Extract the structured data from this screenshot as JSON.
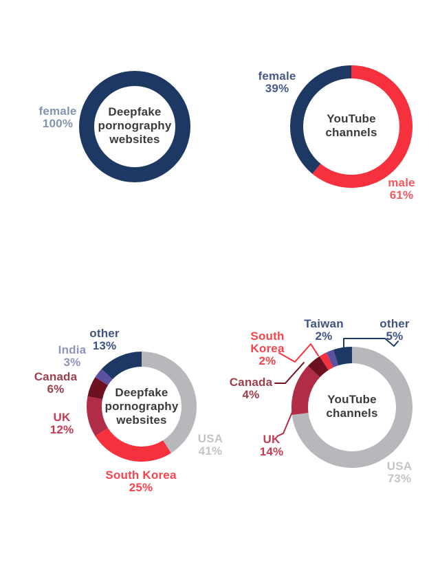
{
  "page": {
    "background_color": "#ffffff"
  },
  "chart_data": [
    {
      "type": "donut",
      "title": "Deepfake pornography websites",
      "legend_position": "outside-left",
      "slices": [
        {
          "label": "female",
          "pct": "100%",
          "value": 100,
          "color": "#1e3864",
          "label_color": "#8392af"
        }
      ]
    },
    {
      "type": "donut",
      "title": "YouTube channels",
      "legend_position": "outside",
      "slices": [
        {
          "label": "male",
          "pct": "61%",
          "value": 61,
          "color": "#f6303d",
          "label_color": "#f4575f"
        },
        {
          "label": "female",
          "pct": "39%",
          "value": 39,
          "color": "#1e3864",
          "label_color": "#47598a"
        }
      ]
    },
    {
      "type": "donut",
      "title": "Deepfake pornography websites",
      "legend_position": "outside",
      "slices": [
        {
          "label": "USA",
          "pct": "41%",
          "value": 41,
          "color": "#b8b8bc",
          "label_color": "#c4c4c8"
        },
        {
          "label": "South Korea",
          "pct": "25%",
          "value": 25,
          "color": "#f6303d",
          "label_color": "#f7434c"
        },
        {
          "label": "UK",
          "pct": "12%",
          "value": 12,
          "color": "#b12c46",
          "label_color": "#c63a52"
        },
        {
          "label": "Canada",
          "pct": "6%",
          "value": 6,
          "color": "#6d1020",
          "label_color": "#9c3f4b"
        },
        {
          "label": "India",
          "pct": "3%",
          "value": 3,
          "color": "#5c50a0",
          "label_color": "#8e94bc"
        },
        {
          "label": "other",
          "pct": "13%",
          "value": 13,
          "color": "#1e3864",
          "label_color": "#3e537f"
        }
      ]
    },
    {
      "type": "donut",
      "title": "YouTube channels",
      "legend_position": "outside",
      "slices": [
        {
          "label": "USA",
          "pct": "73%",
          "value": 73,
          "color": "#b8b8bc",
          "label_color": "#c4c4c8"
        },
        {
          "label": "UK",
          "pct": "14%",
          "value": 14,
          "color": "#b12c46",
          "label_color": "#c63a52"
        },
        {
          "label": "Canada",
          "pct": "4%",
          "value": 4,
          "color": "#6d1020",
          "label_color": "#9c3f4b"
        },
        {
          "label": "South Korea",
          "pct": "2%",
          "value": 2,
          "color": "#f6303d",
          "label_color": "#f7434c"
        },
        {
          "label": "Taiwan",
          "pct": "2%",
          "value": 2,
          "color": "#5c50a0",
          "label_color": "#3e537f"
        },
        {
          "label": "other",
          "pct": "5%",
          "value": 5,
          "color": "#1e3864",
          "label_color": "#3e537f"
        }
      ]
    }
  ]
}
